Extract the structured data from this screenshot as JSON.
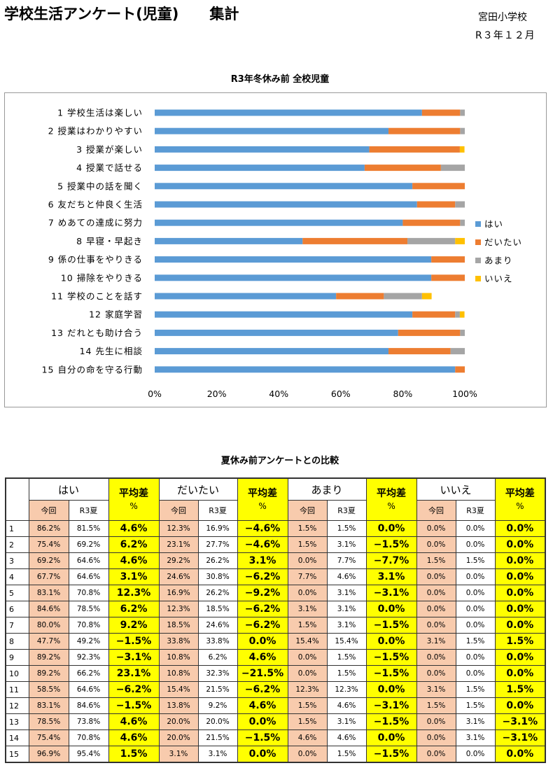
{
  "header": {
    "title": "学校生活アンケート(児童)",
    "subtitle": "集計",
    "school": "宮田小学校",
    "period": "R３年１２月"
  },
  "chart_data": {
    "type": "bar",
    "stacked": true,
    "orientation": "horizontal",
    "percent": true,
    "title": "R3年冬休み前  全校児童",
    "categories": [
      "1 学校生活は楽しい",
      "2 授業はわかりやすい",
      "3 授業が楽しい",
      "4 授業で話せる",
      "5 授業中の話を聞く",
      "6 友だちと仲良く生活",
      "7 めあての達成に努力",
      "8 早寝・早起き",
      "9 係の仕事をやりきる",
      "10 掃除をやりきる",
      "11 学校のことを話す",
      "12 家庭学習",
      "13 だれとも助け合う",
      "14 先生に相談",
      "15 自分の命を守る行動"
    ],
    "series": [
      {
        "name": "はい",
        "color": "#5b9bd5",
        "values": [
          86.2,
          75.4,
          69.2,
          67.7,
          83.1,
          84.6,
          80.0,
          47.7,
          89.2,
          89.2,
          58.5,
          83.1,
          78.5,
          75.4,
          96.9
        ]
      },
      {
        "name": "だいたい",
        "color": "#ed7d31",
        "values": [
          12.3,
          23.1,
          29.2,
          24.6,
          16.9,
          12.3,
          18.5,
          33.8,
          10.8,
          10.8,
          15.4,
          13.8,
          20.0,
          20.0,
          3.1
        ]
      },
      {
        "name": "あまり",
        "color": "#a5a5a5",
        "values": [
          1.5,
          1.5,
          0.0,
          7.7,
          0.0,
          3.1,
          1.5,
          15.4,
          0.0,
          0.0,
          12.3,
          1.5,
          1.5,
          4.6,
          0.0
        ]
      },
      {
        "name": "いいえ",
        "color": "#ffc000",
        "values": [
          0.0,
          0.0,
          1.5,
          0.0,
          0.0,
          0.0,
          0.0,
          3.1,
          0.0,
          0.0,
          3.1,
          1.5,
          0.0,
          0.0,
          0.0
        ]
      }
    ],
    "xticks": [
      "0%",
      "20%",
      "40%",
      "60%",
      "80%",
      "100%"
    ],
    "xlim": [
      0,
      100
    ],
    "legend_position": "right"
  },
  "comparison": {
    "title": "夏休み前アンケートとの比較",
    "groups": [
      "はい",
      "だいたい",
      "あまり",
      "いいえ"
    ],
    "diff_header_top": "平均差",
    "diff_header_unit": "%",
    "sub_current": "今回",
    "sub_previous": "R3夏",
    "rows": [
      {
        "n": "1",
        "v": [
          [
            "86.2%",
            "81.5%",
            "4.6%"
          ],
          [
            "12.3%",
            "16.9%",
            "−4.6%"
          ],
          [
            "1.5%",
            "1.5%",
            "0.0%"
          ],
          [
            "0.0%",
            "0.0%",
            "0.0%"
          ]
        ]
      },
      {
        "n": "2",
        "v": [
          [
            "75.4%",
            "69.2%",
            "6.2%"
          ],
          [
            "23.1%",
            "27.7%",
            "−4.6%"
          ],
          [
            "1.5%",
            "3.1%",
            "−1.5%"
          ],
          [
            "0.0%",
            "0.0%",
            "0.0%"
          ]
        ]
      },
      {
        "n": "3",
        "v": [
          [
            "69.2%",
            "64.6%",
            "4.6%"
          ],
          [
            "29.2%",
            "26.2%",
            "3.1%"
          ],
          [
            "0.0%",
            "7.7%",
            "−7.7%"
          ],
          [
            "1.5%",
            "1.5%",
            "0.0%"
          ]
        ]
      },
      {
        "n": "4",
        "v": [
          [
            "67.7%",
            "64.6%",
            "3.1%"
          ],
          [
            "24.6%",
            "30.8%",
            "−6.2%"
          ],
          [
            "7.7%",
            "4.6%",
            "3.1%"
          ],
          [
            "0.0%",
            "0.0%",
            "0.0%"
          ]
        ]
      },
      {
        "n": "5",
        "v": [
          [
            "83.1%",
            "70.8%",
            "12.3%"
          ],
          [
            "16.9%",
            "26.2%",
            "−9.2%"
          ],
          [
            "0.0%",
            "3.1%",
            "−3.1%"
          ],
          [
            "0.0%",
            "0.0%",
            "0.0%"
          ]
        ]
      },
      {
        "n": "6",
        "v": [
          [
            "84.6%",
            "78.5%",
            "6.2%"
          ],
          [
            "12.3%",
            "18.5%",
            "−6.2%"
          ],
          [
            "3.1%",
            "3.1%",
            "0.0%"
          ],
          [
            "0.0%",
            "0.0%",
            "0.0%"
          ]
        ]
      },
      {
        "n": "7",
        "v": [
          [
            "80.0%",
            "70.8%",
            "9.2%"
          ],
          [
            "18.5%",
            "24.6%",
            "−6.2%"
          ],
          [
            "1.5%",
            "3.1%",
            "−1.5%"
          ],
          [
            "0.0%",
            "0.0%",
            "0.0%"
          ]
        ]
      },
      {
        "n": "8",
        "v": [
          [
            "47.7%",
            "49.2%",
            "−1.5%"
          ],
          [
            "33.8%",
            "33.8%",
            "0.0%"
          ],
          [
            "15.4%",
            "15.4%",
            "0.0%"
          ],
          [
            "3.1%",
            "1.5%",
            "1.5%"
          ]
        ]
      },
      {
        "n": "9",
        "v": [
          [
            "89.2%",
            "92.3%",
            "−3.1%"
          ],
          [
            "10.8%",
            "6.2%",
            "4.6%"
          ],
          [
            "0.0%",
            "1.5%",
            "−1.5%"
          ],
          [
            "0.0%",
            "0.0%",
            "0.0%"
          ]
        ]
      },
      {
        "n": "10",
        "v": [
          [
            "89.2%",
            "66.2%",
            "23.1%"
          ],
          [
            "10.8%",
            "32.3%",
            "−21.5%"
          ],
          [
            "0.0%",
            "1.5%",
            "−1.5%"
          ],
          [
            "0.0%",
            "0.0%",
            "0.0%"
          ]
        ]
      },
      {
        "n": "11",
        "v": [
          [
            "58.5%",
            "64.6%",
            "−6.2%"
          ],
          [
            "15.4%",
            "21.5%",
            "−6.2%"
          ],
          [
            "12.3%",
            "12.3%",
            "0.0%"
          ],
          [
            "3.1%",
            "1.5%",
            "1.5%"
          ]
        ]
      },
      {
        "n": "12",
        "v": [
          [
            "83.1%",
            "84.6%",
            "−1.5%"
          ],
          [
            "13.8%",
            "9.2%",
            "4.6%"
          ],
          [
            "1.5%",
            "4.6%",
            "−3.1%"
          ],
          [
            "1.5%",
            "1.5%",
            "0.0%"
          ]
        ]
      },
      {
        "n": "13",
        "v": [
          [
            "78.5%",
            "73.8%",
            "4.6%"
          ],
          [
            "20.0%",
            "20.0%",
            "0.0%"
          ],
          [
            "1.5%",
            "3.1%",
            "−1.5%"
          ],
          [
            "0.0%",
            "3.1%",
            "−3.1%"
          ]
        ]
      },
      {
        "n": "14",
        "v": [
          [
            "75.4%",
            "70.8%",
            "4.6%"
          ],
          [
            "20.0%",
            "21.5%",
            "−1.5%"
          ],
          [
            "4.6%",
            "4.6%",
            "0.0%"
          ],
          [
            "0.0%",
            "3.1%",
            "−3.1%"
          ]
        ]
      },
      {
        "n": "15",
        "v": [
          [
            "96.9%",
            "95.4%",
            "1.5%"
          ],
          [
            "3.1%",
            "3.1%",
            "0.0%"
          ],
          [
            "0.0%",
            "1.5%",
            "−1.5%"
          ],
          [
            "0.0%",
            "0.0%",
            "0.0%"
          ]
        ]
      }
    ]
  }
}
